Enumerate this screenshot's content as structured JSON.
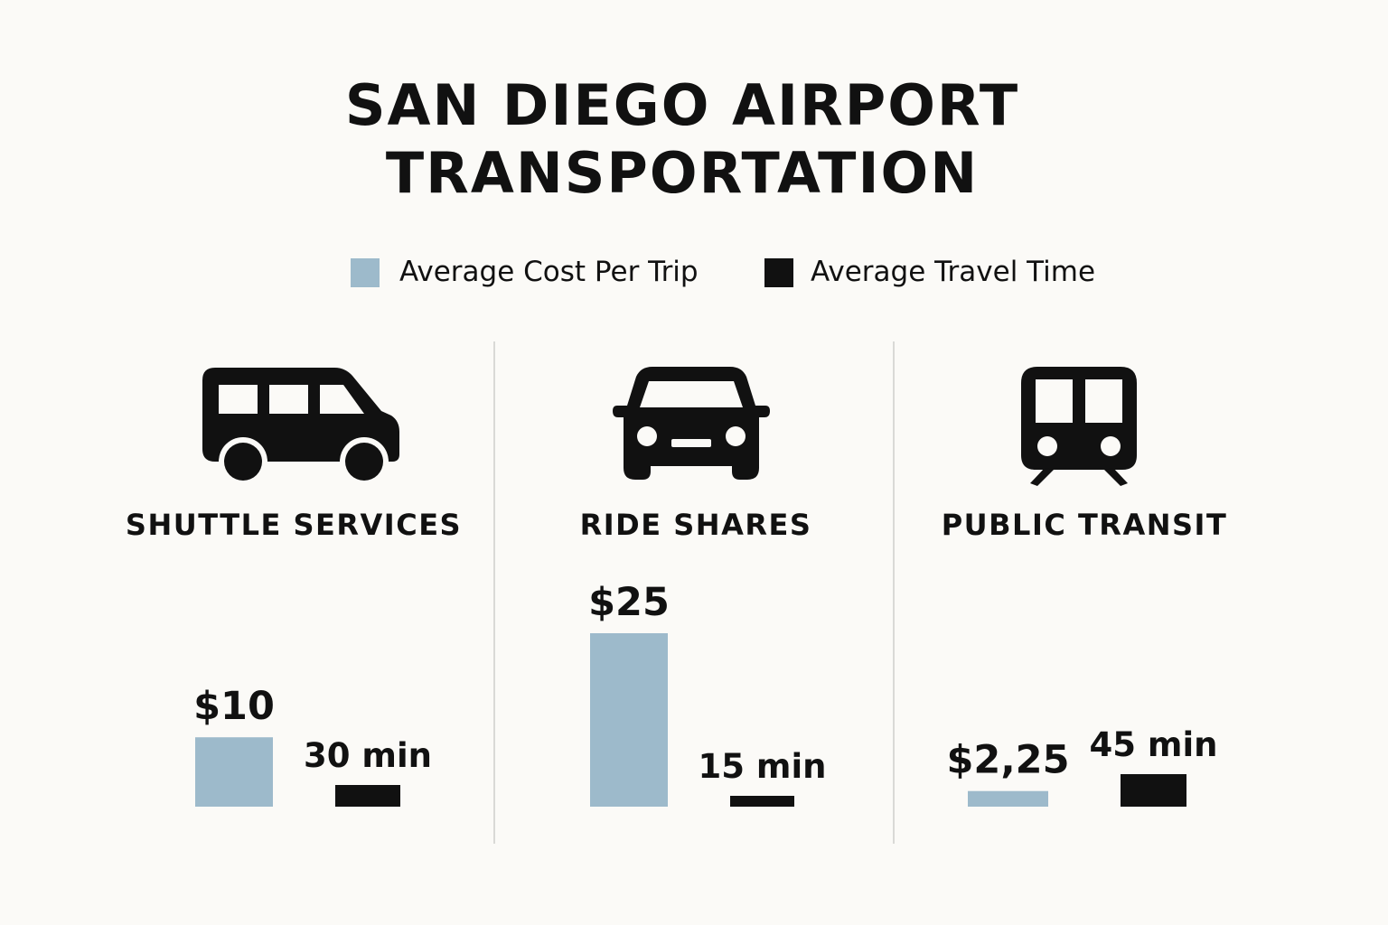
{
  "title_line1": "SAN DIEGO AIRPORT",
  "title_line2": "TRANSPORTATION",
  "legend": [
    {
      "label": "Average Cost Per Trip",
      "color": "#9dbacb"
    },
    {
      "label": "Average Travel Time",
      "color": "#111111"
    }
  ],
  "icons": [
    "shuttle-van-icon",
    "car-icon",
    "train-icon"
  ],
  "colors": {
    "background": "#fbfaf7",
    "cost": "#9dbacb",
    "time": "#111111",
    "divider": "#d9d9d6"
  },
  "chart_data": {
    "type": "bar",
    "categories": [
      "SHUTTLE SERVICES",
      "RIDE SHARES",
      "PUBLIC TRANSIT"
    ],
    "series": [
      {
        "name": "Average Cost Per Trip",
        "values": [
          10,
          25,
          2.25
        ],
        "labels": [
          "$10",
          "$25",
          "$2,25"
        ],
        "color": "#9dbacb"
      },
      {
        "name": "Average Travel Time",
        "values": [
          30,
          15,
          45
        ],
        "labels": [
          "30 min",
          "15 min",
          "45 min"
        ],
        "color": "#111111"
      }
    ]
  }
}
